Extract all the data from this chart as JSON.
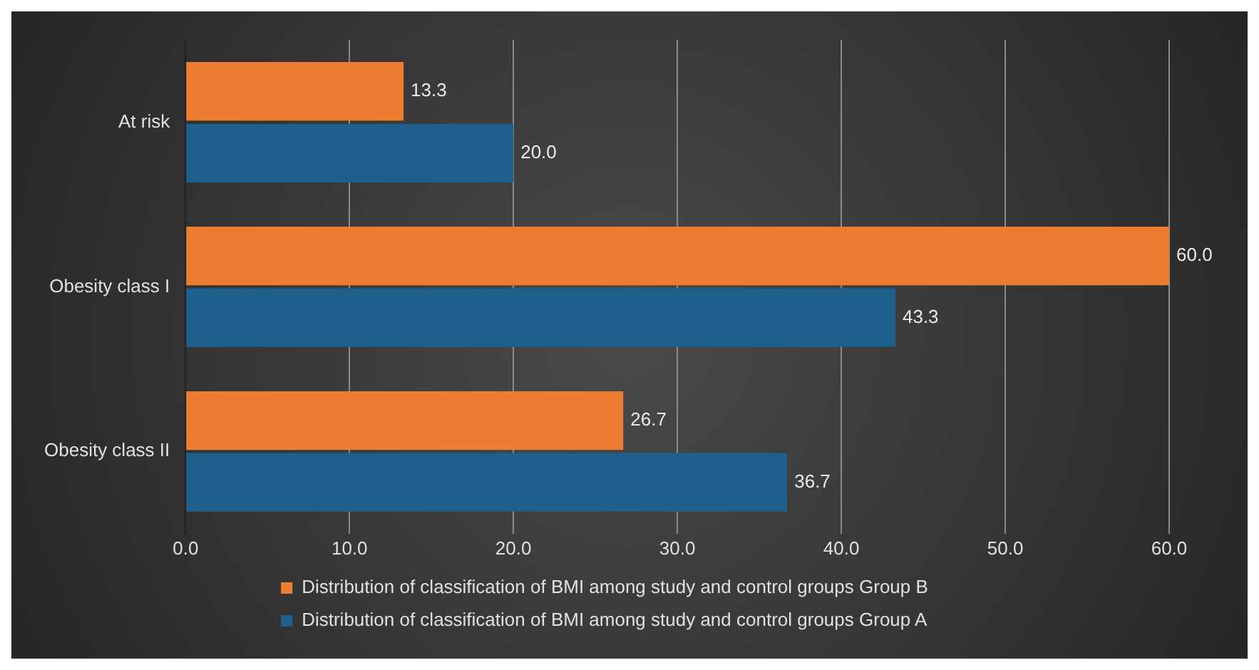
{
  "chart_data": {
    "type": "bar",
    "orientation": "horizontal",
    "categories": [
      "At risk",
      "Obesity class I",
      "Obesity class II"
    ],
    "series": [
      {
        "name": "Distribution of classification of BMI among study and control groups Group B",
        "color": "#ed7d31",
        "values": [
          13.3,
          60.0,
          26.7
        ],
        "value_labels": [
          "13.3",
          "60.0",
          "26.7"
        ]
      },
      {
        "name": "Distribution of classification of BMI among study and control groups Group A",
        "color": "#1f5f8b",
        "values": [
          20.0,
          43.3,
          36.7
        ],
        "value_labels": [
          "20.0",
          "43.3",
          "36.7"
        ]
      }
    ],
    "xlim": [
      0,
      60
    ],
    "xticks": [
      {
        "value": 0,
        "label": "0.0"
      },
      {
        "value": 10,
        "label": "10.0"
      },
      {
        "value": 20,
        "label": "20.0"
      },
      {
        "value": 30,
        "label": "30.0"
      },
      {
        "value": 40,
        "label": "40.0"
      },
      {
        "value": 50,
        "label": "50.0"
      },
      {
        "value": 60,
        "label": "60.0"
      }
    ],
    "grid": "x",
    "legend": "bottom"
  }
}
